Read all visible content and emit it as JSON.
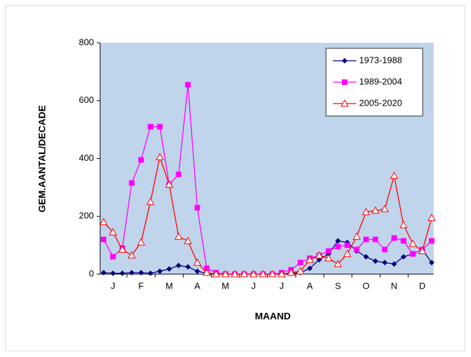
{
  "chart_data": {
    "type": "line",
    "categories": [
      null,
      "J",
      null,
      null,
      "F",
      null,
      null,
      "M",
      null,
      null,
      "A",
      null,
      null,
      "M",
      null,
      null,
      "J",
      null,
      null,
      "J",
      null,
      null,
      "A",
      null,
      null,
      "S",
      null,
      null,
      "O",
      null,
      null,
      "N",
      null,
      null,
      "D",
      null
    ],
    "series": [
      {
        "name": "1973-1988",
        "color": "#000080",
        "marker": "diamond",
        "values": [
          5,
          3,
          3,
          5,
          5,
          3,
          10,
          18,
          30,
          25,
          10,
          3,
          0,
          0,
          0,
          0,
          0,
          0,
          0,
          0,
          2,
          5,
          20,
          50,
          70,
          115,
          110,
          80,
          60,
          45,
          40,
          35,
          60,
          70,
          85,
          40
        ]
      },
      {
        "name": "1989-2004",
        "color": "#ff00ff",
        "marker": "square",
        "values": [
          120,
          60,
          90,
          315,
          395,
          510,
          510,
          310,
          345,
          655,
          230,
          20,
          5,
          0,
          0,
          0,
          0,
          0,
          0,
          5,
          15,
          40,
          55,
          65,
          80,
          95,
          100,
          85,
          120,
          120,
          85,
          125,
          115,
          70,
          85,
          115
        ]
      },
      {
        "name": "2005-2020",
        "color": "#ff0000",
        "marker": "triangle",
        "values": [
          180,
          145,
          85,
          65,
          110,
          250,
          405,
          310,
          130,
          115,
          40,
          5,
          0,
          0,
          0,
          0,
          0,
          0,
          0,
          0,
          5,
          10,
          50,
          65,
          55,
          35,
          70,
          130,
          215,
          220,
          225,
          340,
          170,
          105,
          80,
          195
        ]
      }
    ],
    "ylim": [
      0,
      800
    ],
    "yticks": [
      0,
      200,
      400,
      600,
      800
    ],
    "xlabel": "MAAND",
    "ylabel": "GEM.AANTAL/DECADE",
    "legend": "top-right",
    "background": "#c0d4ec"
  }
}
